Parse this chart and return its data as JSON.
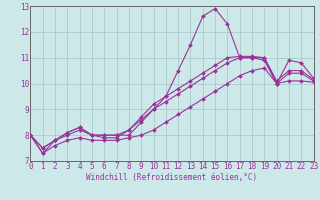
{
  "background_color": "#cce8e8",
  "grid_color": "#aacccc",
  "line_color": "#993399",
  "spine_color": "#666666",
  "xlim": [
    0,
    23
  ],
  "ylim": [
    7,
    13
  ],
  "yticks": [
    7,
    8,
    9,
    10,
    11,
    12,
    13
  ],
  "xticks": [
    0,
    1,
    2,
    3,
    4,
    5,
    6,
    7,
    8,
    9,
    10,
    11,
    12,
    13,
    14,
    15,
    16,
    17,
    18,
    19,
    20,
    21,
    22,
    23
  ],
  "xlabel": "Windchill (Refroidissement éolien,°C)",
  "hours": [
    0,
    1,
    2,
    3,
    4,
    5,
    6,
    7,
    8,
    9,
    10,
    11,
    12,
    13,
    14,
    15,
    16,
    17,
    18,
    19,
    20,
    21,
    22,
    23
  ],
  "line1": [
    8.0,
    7.3,
    7.8,
    8.1,
    8.3,
    8.0,
    8.0,
    8.0,
    8.0,
    8.5,
    9.0,
    9.5,
    10.5,
    11.5,
    12.6,
    12.9,
    12.3,
    11.0,
    11.0,
    11.0,
    10.0,
    10.9,
    10.8,
    10.2
  ],
  "line2": [
    8.0,
    7.5,
    7.8,
    8.1,
    8.3,
    8.0,
    8.0,
    8.0,
    8.2,
    8.7,
    9.2,
    9.5,
    9.8,
    10.1,
    10.4,
    10.7,
    11.0,
    11.05,
    11.05,
    11.0,
    10.1,
    10.5,
    10.5,
    10.15
  ],
  "line3": [
    8.0,
    7.5,
    7.8,
    8.0,
    8.2,
    8.0,
    7.9,
    7.9,
    8.2,
    8.6,
    9.0,
    9.3,
    9.6,
    9.9,
    10.2,
    10.5,
    10.8,
    11.0,
    11.0,
    10.9,
    10.0,
    10.4,
    10.4,
    10.1
  ],
  "line4": [
    8.0,
    7.3,
    7.6,
    7.8,
    7.9,
    7.8,
    7.8,
    7.8,
    7.9,
    8.0,
    8.2,
    8.5,
    8.8,
    9.1,
    9.4,
    9.7,
    10.0,
    10.3,
    10.5,
    10.6,
    10.0,
    10.1,
    10.1,
    10.05
  ],
  "tick_fontsize": 5.5,
  "xlabel_fontsize": 5.5,
  "marker_size": 2.0,
  "line_width": 0.8
}
